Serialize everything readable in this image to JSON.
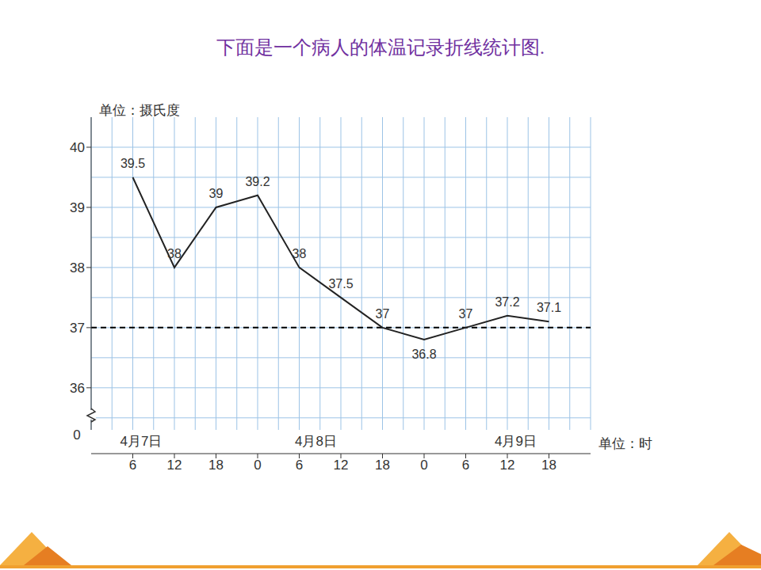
{
  "chart_data": {
    "type": "line",
    "title": "下面是一个病人的体温记录折线统计图.",
    "y_label": "单位：摄氏度",
    "x_label": "单位：时",
    "categories": [
      "6",
      "12",
      "18",
      "0",
      "6",
      "12",
      "18",
      "0",
      "6",
      "12",
      "18"
    ],
    "groups": [
      {
        "label": "4月7日",
        "size": 3
      },
      {
        "label": "4月8日",
        "size": 4
      },
      {
        "label": "4月9日",
        "size": 4
      }
    ],
    "values": [
      39.5,
      38,
      39,
      39.2,
      38,
      37.5,
      37,
      36.8,
      37,
      37.2,
      37.1
    ],
    "color": "#222222",
    "ylim": [
      35.3,
      40.5
    ],
    "yticks": [
      36,
      37,
      38,
      39,
      40
    ],
    "y_axis_break": 0,
    "reference_line": {
      "value": 37,
      "line_style": "dashed"
    },
    "grid": true,
    "data_labels": true
  }
}
